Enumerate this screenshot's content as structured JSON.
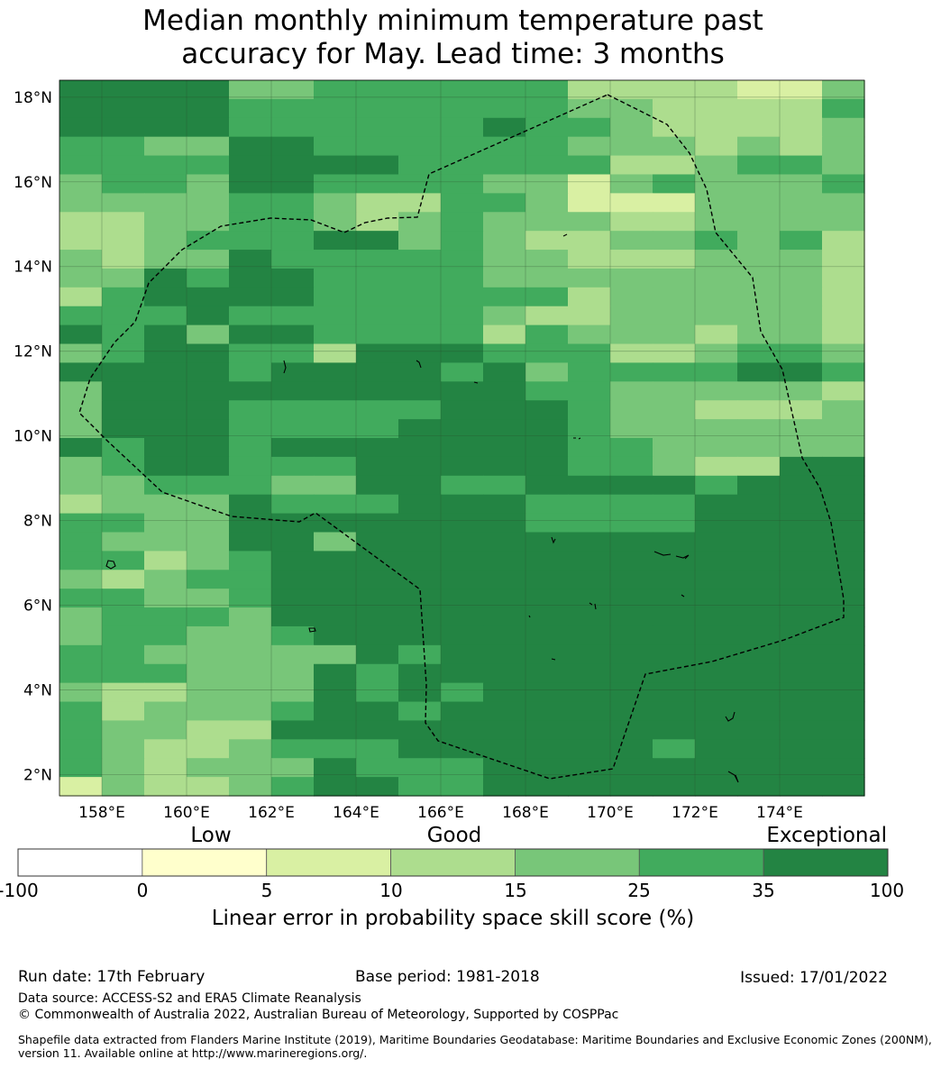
{
  "title": {
    "line1": "Median monthly minimum temperature past",
    "line2": "accuracy for May. Lead time: 3 months"
  },
  "map": {
    "lat_labels": [
      "18°N",
      "16°N",
      "14°N",
      "12°N",
      "10°N",
      "8°N",
      "6°N",
      "4°N",
      "2°N"
    ],
    "lon_labels": [
      "158°E",
      "160°E",
      "162°E",
      "164°E",
      "166°E",
      "168°E",
      "170°E",
      "172°E",
      "174°E"
    ],
    "lat_values": [
      18,
      16,
      14,
      12,
      10,
      8,
      6,
      4,
      2
    ],
    "lon_values": [
      158,
      160,
      162,
      164,
      166,
      168,
      170,
      172,
      174
    ],
    "extent": {
      "lon_min": 157,
      "lon_max": 176,
      "lat_min": 1.5,
      "lat_max": 18.4
    },
    "category_colors": [
      "#ffffff",
      "#ffffcc",
      "#d9f0a3",
      "#addd8e",
      "#78c679",
      "#41ab5d",
      "#238443"
    ],
    "grid_rows": [
      "6666445555553333224",
      "6666555555554433335",
      "6666555555655433334",
      "5544665555554443434",
      "5555666655555334554",
      "4554665555442454445",
      "4444554335542224444",
      "3344554345444334444",
      "3345556645433445453",
      "4344655555443334443",
      "4465665555444444443",
      "3566665555553444443",
      "5556555555433444443",
      "6564665555354443443",
      "4566553666555334554",
      "6666566665645555665",
      "4666666666655444443",
      "4666555556665443334",
      "4666555566665444444",
      "6566566666665544444",
      "4566555666665543366",
      "4455544665566665666",
      "3444655566655556666",
      "5544666666655556666",
      "5444664666666666666",
      "5534566666666666666",
      "4345566666666666666",
      "5544566666666666666",
      "4555466666666666666",
      "4554456666666666666",
      "5544444656666666666",
      "5554446566666666666",
      "4334446565666666666",
      "5344456656666666666",
      "5443366666666666666",
      "5433455566666656666",
      "5434446555666666666",
      "2433456655666666666"
    ]
  },
  "colorbar": {
    "categories": [
      "Low",
      "Good",
      "Exceptional"
    ],
    "ticks": [
      "-100",
      "0",
      "5",
      "10",
      "15",
      "25",
      "35",
      "100"
    ],
    "colors": [
      "#ffffff",
      "#ffffcc",
      "#d9f0a3",
      "#addd8e",
      "#78c679",
      "#41ab5d",
      "#238443"
    ],
    "label": "Linear error in probability space skill score (%)"
  },
  "footer": {
    "run_date": "Run date: 17th February",
    "base_period": "Base period: 1981-2018",
    "issued": "Issued: 17/01/2022",
    "data_source": "Data source: ACCESS-S2 and ERA5 Climate Reanalysis",
    "copyright": "© Commonwealth of Australia 2022, Australian Bureau of Meteorology, Supported by COSPPac",
    "shapefile_line1": "Shapefile data extracted from Flanders Marine Institute (2019), Maritime Boundaries Geodatabase: Maritime Boundaries and Exclusive Economic Zones (200NM),",
    "shapefile_line2": "version 11. Available online at http://www.marineregions.org/."
  }
}
